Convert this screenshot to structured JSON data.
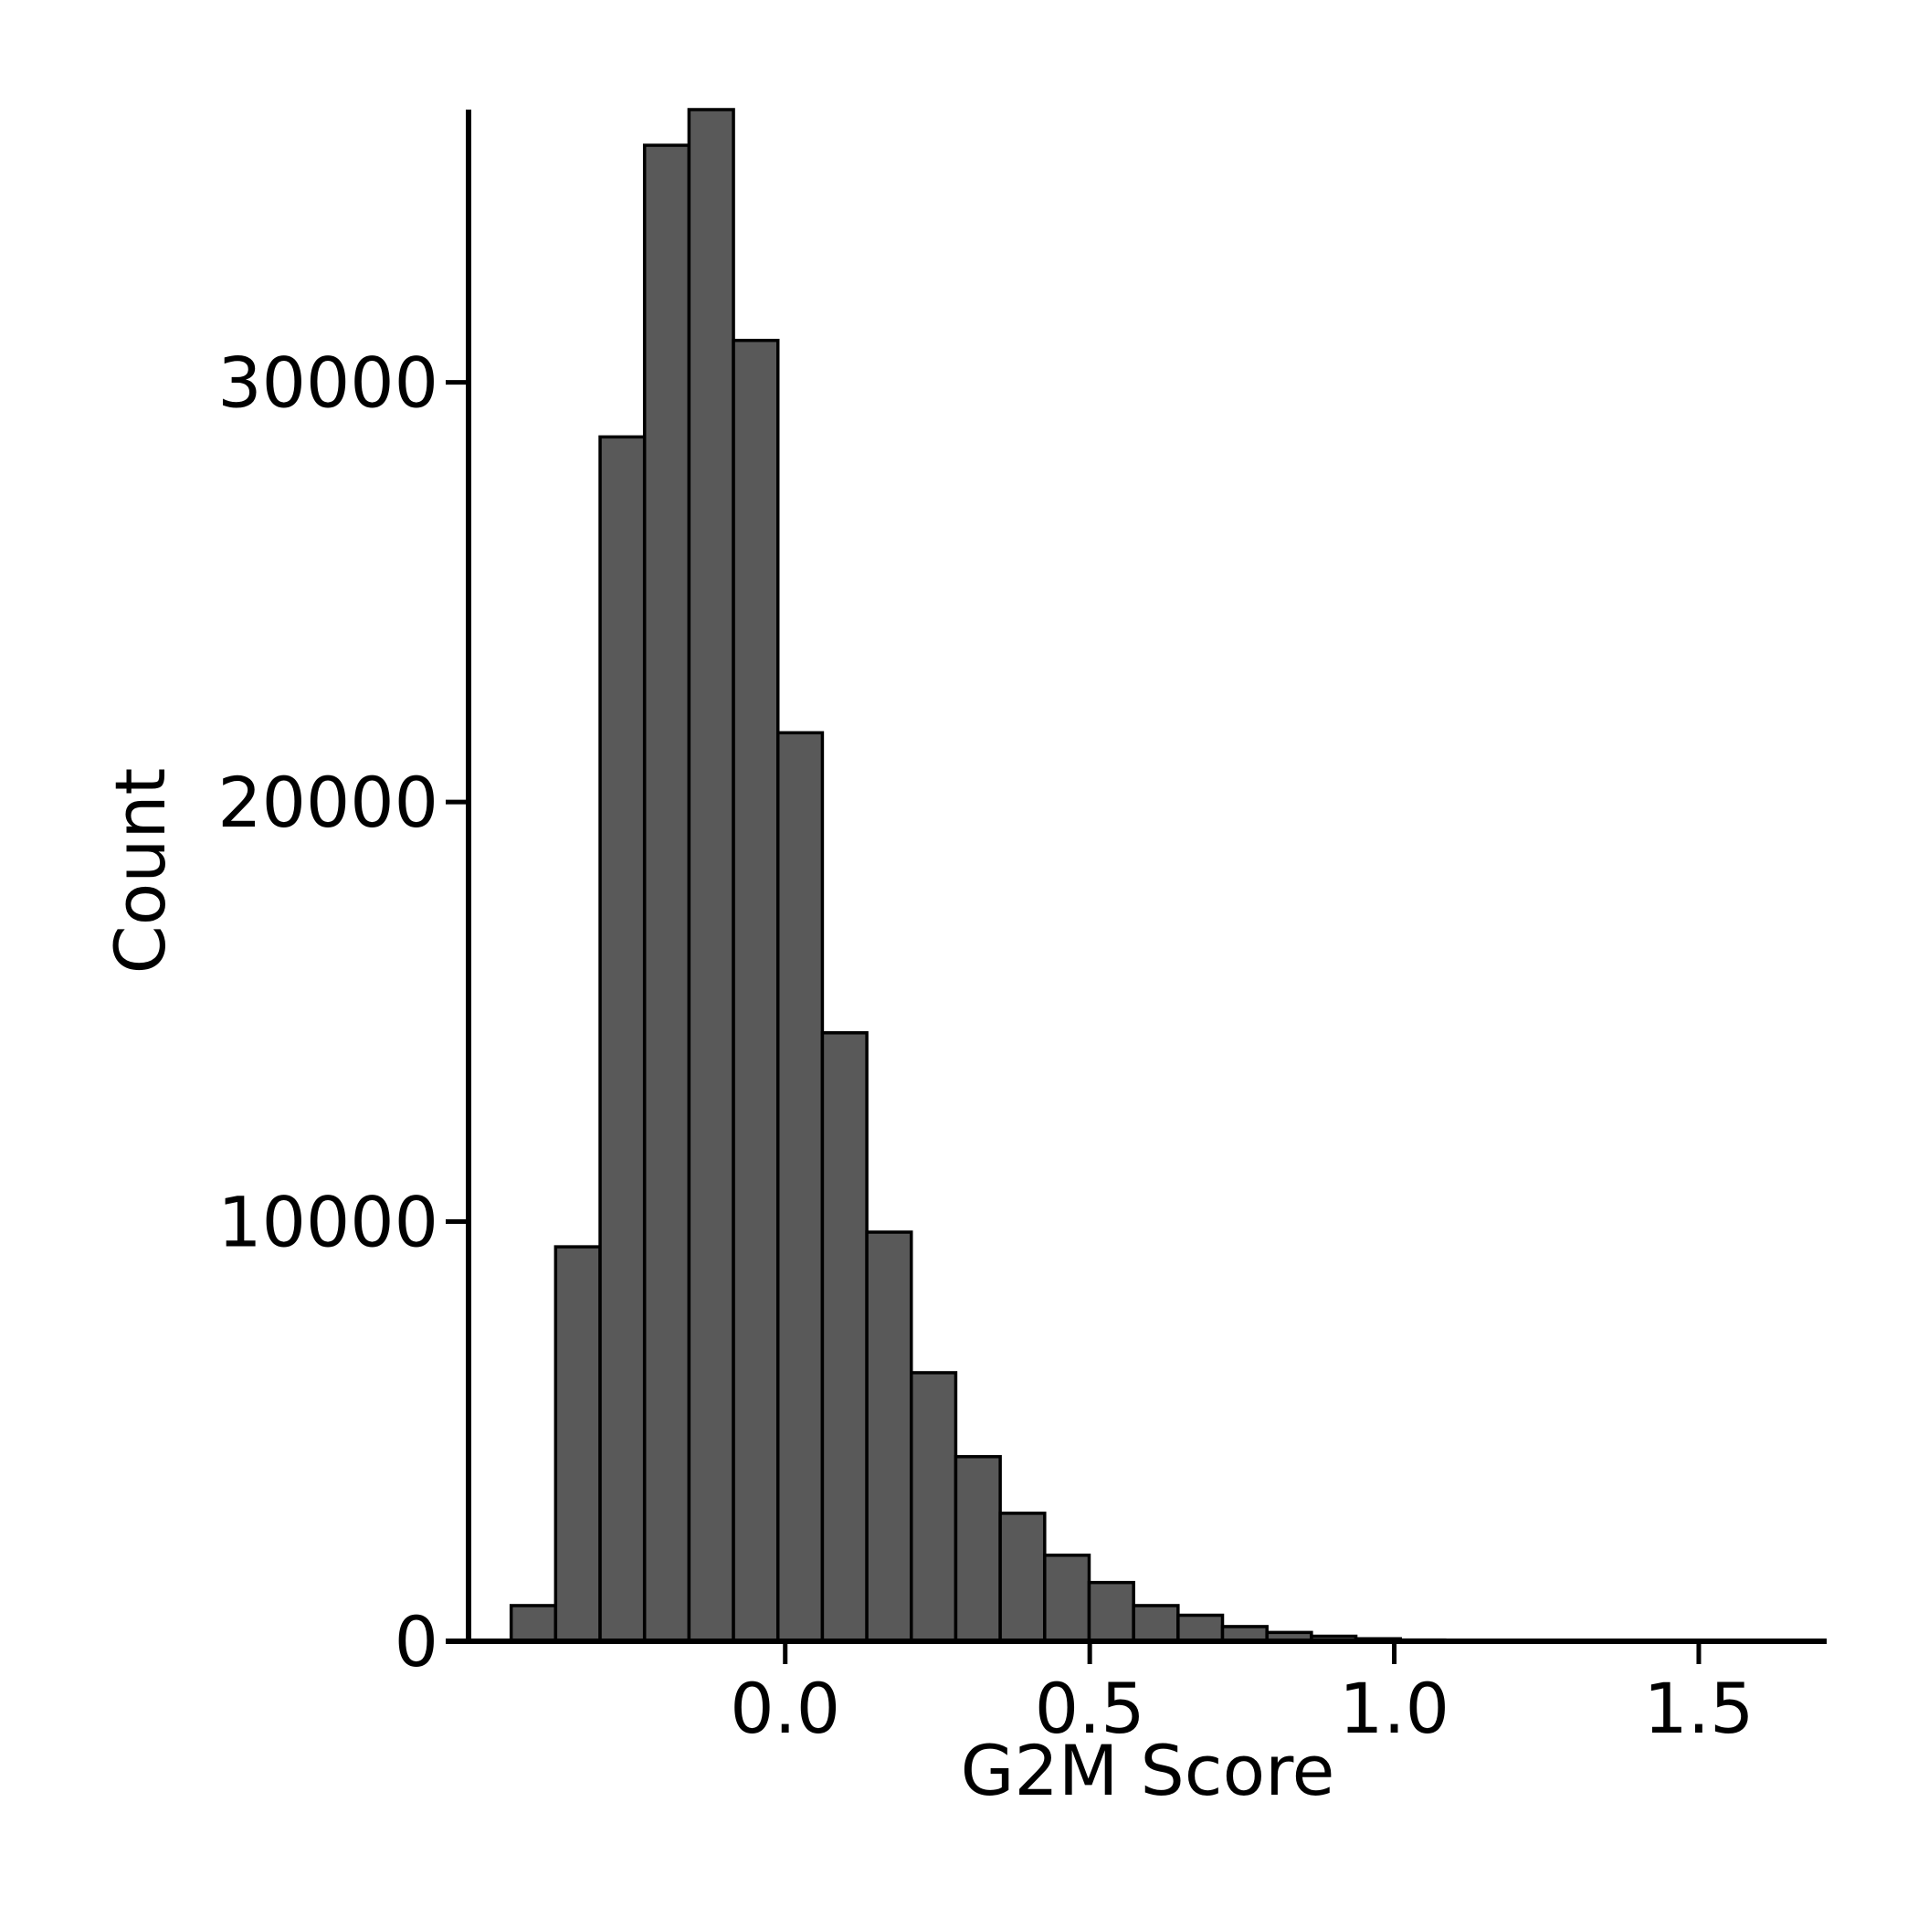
{
  "chart_data": {
    "type": "bar",
    "xlabel": "G2M Score",
    "ylabel": "Count",
    "xlim": [
      -0.52,
      1.71
    ],
    "ylim": [
      0,
      36500
    ],
    "x_ticks": [
      {
        "value": 0.0,
        "label": "0.0"
      },
      {
        "value": 0.5,
        "label": "0.5"
      },
      {
        "value": 1.0,
        "label": "1.0"
      },
      {
        "value": 1.5,
        "label": "1.5"
      }
    ],
    "y_ticks": [
      {
        "value": 0,
        "label": "0"
      },
      {
        "value": 10000,
        "label": "10000"
      },
      {
        "value": 20000,
        "label": "20000"
      },
      {
        "value": 30000,
        "label": "30000"
      }
    ],
    "bin_edges": [
      -0.45,
      -0.377,
      -0.304,
      -0.231,
      -0.158,
      -0.085,
      -0.012,
      0.061,
      0.134,
      0.207,
      0.28,
      0.353,
      0.426,
      0.499,
      0.572,
      0.645,
      0.718,
      0.791,
      0.864,
      0.937,
      1.01,
      1.083,
      1.156
    ],
    "counts": [
      850,
      9400,
      28700,
      35650,
      36500,
      31000,
      21650,
      14500,
      9750,
      6400,
      4400,
      3050,
      2050,
      1400,
      850,
      620,
      350,
      210,
      120,
      60,
      30,
      15
    ],
    "bar_color": "#595959",
    "edge_color": "#000000",
    "grid": false
  }
}
